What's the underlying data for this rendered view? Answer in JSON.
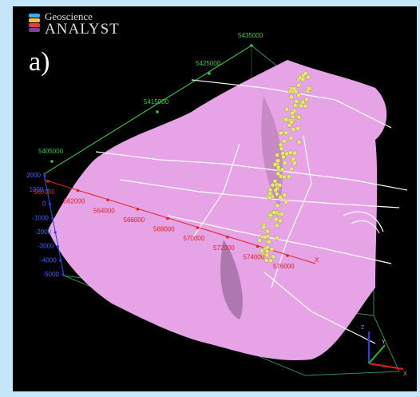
{
  "logo": {
    "top": "Geoscience",
    "bottom": "ANALYST"
  },
  "panel_label": "a)",
  "northing_ticks": [
    "5435000",
    "5425000",
    "5415000",
    "5405000"
  ],
  "easting_ticks": [
    "560000",
    "562000",
    "564000",
    "566000",
    "568000",
    "570000",
    "572000",
    "574000",
    "576000"
  ],
  "elevation_ticks": [
    "2000",
    "1000",
    "0",
    "-1000",
    "-2000",
    "-3000",
    "-4000",
    "-5000"
  ],
  "easting_axis_label": "X",
  "triad": {
    "z": "Z",
    "y": "Y",
    "x": "X"
  }
}
